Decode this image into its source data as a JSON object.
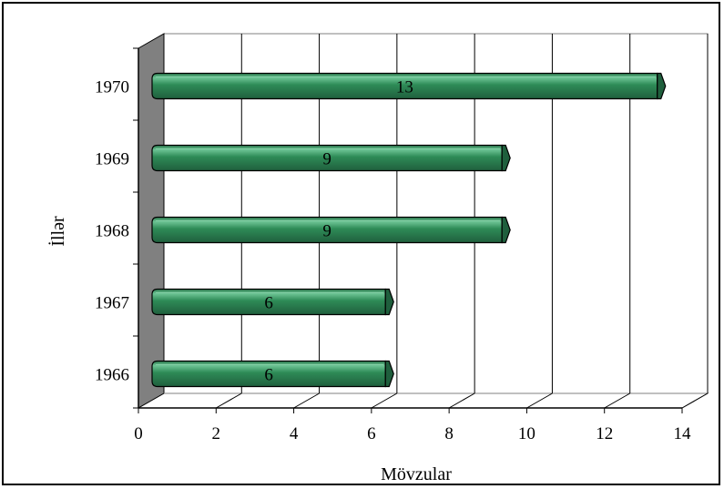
{
  "chart_data": {
    "type": "bar",
    "orientation": "horizontal",
    "style": "3d-cylinder",
    "categories": [
      "1966",
      "1967",
      "1968",
      "1969",
      "1970"
    ],
    "values": [
      6,
      6,
      9,
      9,
      13
    ],
    "data_labels": [
      "6",
      "6",
      "9",
      "9",
      "13"
    ],
    "xlabel": "Mövzular",
    "ylabel": "İllər",
    "xlim": [
      0,
      14
    ],
    "x_ticks": [
      "0",
      "2",
      "4",
      "6",
      "8",
      "10",
      "12",
      "14"
    ],
    "grid": "vertical",
    "legend": "none",
    "colors": {
      "bar": "#2e8b57",
      "bar_light": "#5fbf8a",
      "bar_end": "#1f5f3d",
      "side_wall": "#808080",
      "grid": "#000000"
    }
  }
}
